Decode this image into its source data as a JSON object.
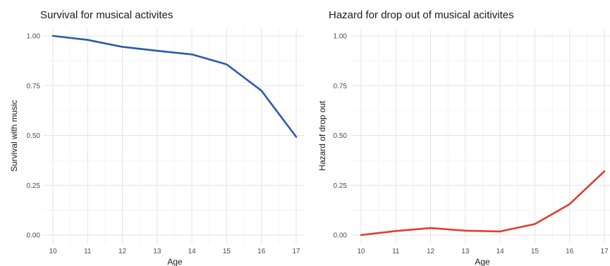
{
  "chart_data": [
    {
      "type": "line",
      "title": "Survival for musical activites",
      "xlabel": "Age",
      "ylabel": "Survival with music",
      "x": [
        10,
        11,
        12,
        13,
        14,
        15,
        16,
        17
      ],
      "x_ticks": [
        "10",
        "11",
        "12",
        "13",
        "14",
        "15",
        "16",
        "17"
      ],
      "y_ticks": [
        "0.00",
        "0.25",
        "0.50",
        "0.75",
        "1.00"
      ],
      "xlim": [
        10,
        17
      ],
      "ylim": [
        0,
        1
      ],
      "grid": true,
      "series": [
        {
          "values": [
            1.0,
            0.98,
            0.945,
            0.925,
            0.907,
            0.857,
            0.725,
            0.493
          ],
          "color": "#2b5aa8"
        }
      ]
    },
    {
      "type": "line",
      "title": "Hazard for drop out of musical acitivites",
      "xlabel": "Age",
      "ylabel": "Hazard of drop out",
      "x": [
        10,
        11,
        12,
        13,
        14,
        15,
        16,
        17
      ],
      "x_ticks": [
        "10",
        "11",
        "12",
        "13",
        "14",
        "15",
        "16",
        "17"
      ],
      "y_ticks": [
        "0.00",
        "0.25",
        "0.50",
        "0.75",
        "1.00"
      ],
      "xlim": [
        10,
        17
      ],
      "ylim": [
        0,
        1
      ],
      "grid": true,
      "series": [
        {
          "values": [
            0.0,
            0.02,
            0.035,
            0.022,
            0.018,
            0.055,
            0.155,
            0.32
          ],
          "color": "#e33b2e"
        }
      ]
    }
  ]
}
